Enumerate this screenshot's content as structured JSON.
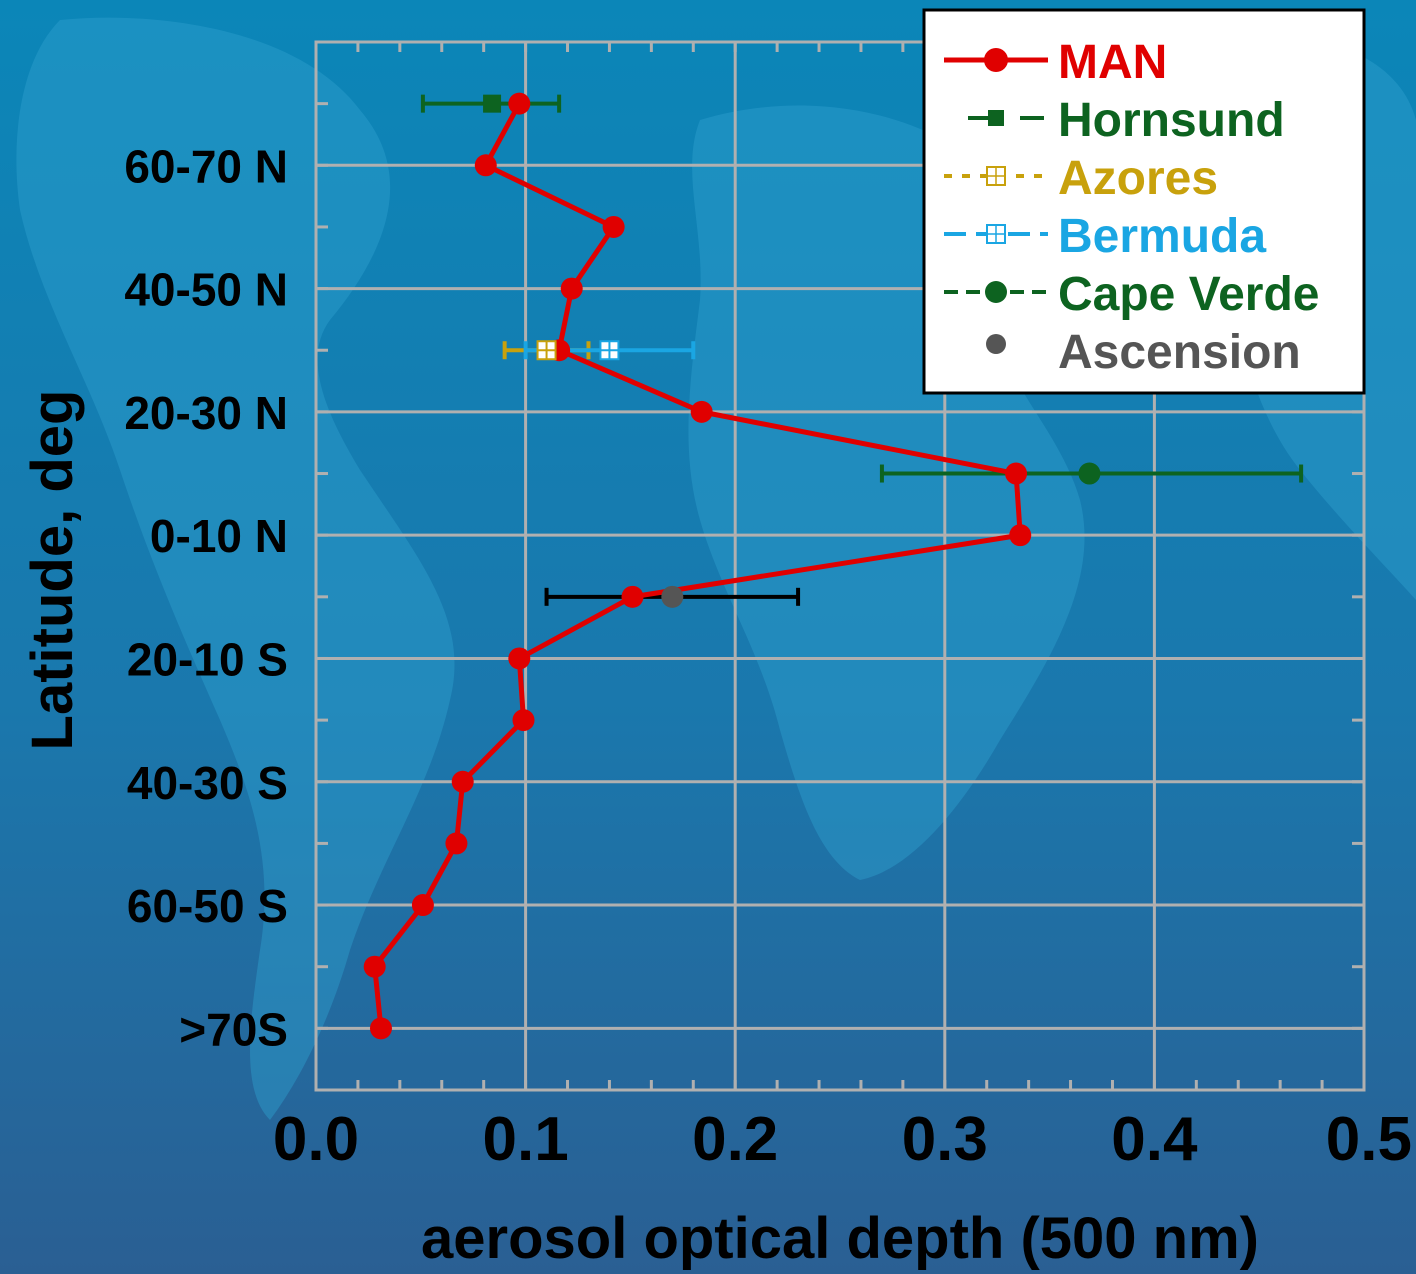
{
  "colors": {
    "background_top": "#0b86b8",
    "background_bottom": "#2a5f93",
    "land": "#2f9fcf",
    "grid": "#b0b0b0",
    "man": "#e00000",
    "hornsund": "#0d6320",
    "azores": "#c8a10c",
    "bermuda": "#1aa6e3",
    "cape_verde": "#0d6320",
    "ascension": "#555555",
    "ascension_errorbar": "#000000"
  },
  "chart_data": {
    "type": "line",
    "xlabel": "aerosol optical depth (500 nm)",
    "ylabel": "Latitude, deg",
    "xlim": [
      0.0,
      0.5
    ],
    "x_ticks": [
      "0.0",
      "0.1",
      "0.2",
      "0.3",
      "0.4",
      "0.5"
    ],
    "y_ticks": [
      "60-70 N",
      "40-50 N",
      "20-30 N",
      "0-10 N",
      "20-10 S",
      "40-30 S",
      "60-50 S",
      ">70S"
    ],
    "y_unit_note": "y value: latitude in degrees (N positive, S negative)",
    "ylim": [
      -90,
      80
    ],
    "grid": true,
    "legend_position": "top-right",
    "series": [
      {
        "name": "MAN",
        "key": "man",
        "points": [
          {
            "x": 0.097,
            "y": 70
          },
          {
            "x": 0.081,
            "y": 60
          },
          {
            "x": 0.142,
            "y": 50
          },
          {
            "x": 0.122,
            "y": 40
          },
          {
            "x": 0.116,
            "y": 30
          },
          {
            "x": 0.184,
            "y": 20
          },
          {
            "x": 0.334,
            "y": 10
          },
          {
            "x": 0.336,
            "y": 0
          },
          {
            "x": 0.151,
            "y": -10
          },
          {
            "x": 0.097,
            "y": -20
          },
          {
            "x": 0.099,
            "y": -30
          },
          {
            "x": 0.07,
            "y": -40
          },
          {
            "x": 0.067,
            "y": -50
          },
          {
            "x": 0.051,
            "y": -60
          },
          {
            "x": 0.028,
            "y": -70
          },
          {
            "x": 0.031,
            "y": -80
          }
        ]
      },
      {
        "name": "Hornsund",
        "key": "hornsund",
        "points": [
          {
            "x": 0.084,
            "y": 70,
            "err": [
              0.051,
              0.116
            ]
          }
        ]
      },
      {
        "name": "Azores",
        "key": "azores",
        "points": [
          {
            "x": 0.11,
            "y": 30,
            "err": [
              0.09,
              0.13
            ]
          }
        ]
      },
      {
        "name": "Bermuda",
        "key": "bermuda",
        "points": [
          {
            "x": 0.14,
            "y": 30,
            "err": [
              0.1,
              0.18
            ]
          }
        ]
      },
      {
        "name": "Cape Verde",
        "key": "cape_verde",
        "points": [
          {
            "x": 0.369,
            "y": 10,
            "err": [
              0.27,
              0.47
            ]
          }
        ]
      },
      {
        "name": "Ascension",
        "key": "ascension",
        "points": [
          {
            "x": 0.17,
            "y": -10,
            "err": [
              0.11,
              0.23
            ]
          }
        ]
      }
    ]
  },
  "legend": {
    "items": [
      {
        "label": "MAN",
        "color": "#e00000"
      },
      {
        "label": "Hornsund",
        "color": "#0d6320"
      },
      {
        "label": "Azores",
        "color": "#c8a10c"
      },
      {
        "label": "Bermuda",
        "color": "#1aa6e3"
      },
      {
        "label": "Cape Verde",
        "color": "#0d6320"
      },
      {
        "label": "Ascension",
        "color": "#555555"
      }
    ]
  }
}
